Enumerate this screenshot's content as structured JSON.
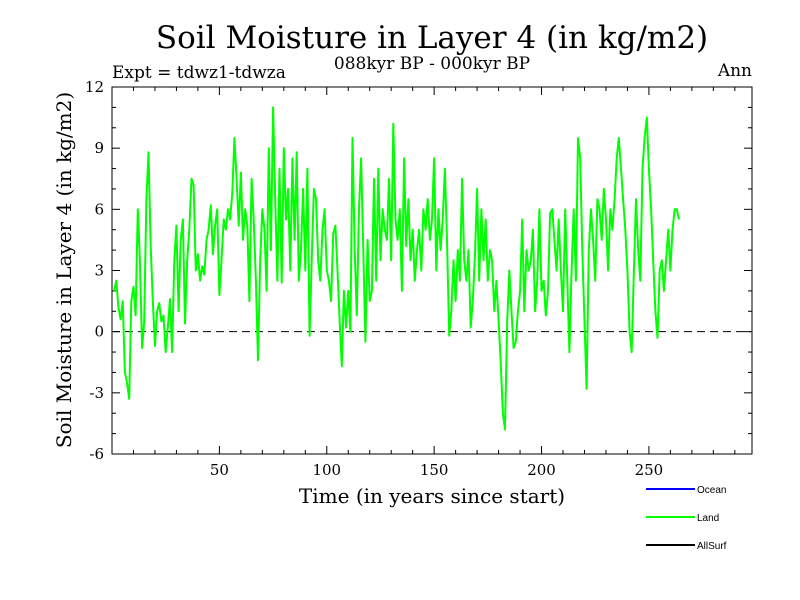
{
  "chart_data": {
    "type": "line",
    "title": "Soil Moisture in Layer 4 (in kg/m2)",
    "subtitle": "088kyr BP - 000kyr BP",
    "experiment": "Expt = tdwz1-tdwza",
    "season": "Ann",
    "xlabel": "Time (in years since start)",
    "ylabel": "Soil Moisture in Layer 4 (in kg/m2)",
    "xlim": [
      0,
      298
    ],
    "ylim": [
      -6,
      12
    ],
    "x_ticks": [
      50,
      100,
      150,
      200,
      250
    ],
    "y_ticks": [
      -6,
      -3,
      0,
      3,
      6,
      9,
      12
    ],
    "reference_line": 0,
    "legend": [
      {
        "name": "Ocean",
        "color": "#0000ff"
      },
      {
        "name": "Land",
        "color": "#00ff00"
      },
      {
        "name": "AllSurf",
        "color": "#000000"
      }
    ],
    "series": [
      {
        "name": "Land",
        "color": "#00ff00",
        "x_start": 1,
        "x_step": 1,
        "values": [
          2.0,
          2.5,
          1.2,
          0.6,
          1.5,
          -2.0,
          -2.5,
          -3.3,
          1.5,
          2.2,
          0.8,
          6.0,
          3.5,
          -0.8,
          0.5,
          6.5,
          8.8,
          4.2,
          1.5,
          -0.7,
          1.0,
          1.4,
          0.5,
          0.8,
          -1.0,
          0.2,
          1.6,
          -1.0,
          3.5,
          5.2,
          1.0,
          4.5,
          5.5,
          0.4,
          3.5,
          5.0,
          7.5,
          7.2,
          3.0,
          3.8,
          2.5,
          3.2,
          2.8,
          4.5,
          5.0,
          6.2,
          3.8,
          5.2,
          6.0,
          1.8,
          3.5,
          5.5,
          5.0,
          6.0,
          5.5,
          6.8,
          9.5,
          7.5,
          5.2,
          7.8,
          4.5,
          6.0,
          5.2,
          1.5,
          7.5,
          5.5,
          2.5,
          -1.4,
          3.5,
          6.0,
          5.0,
          2.0,
          9.0,
          4.0,
          11.0,
          6.5,
          2.5,
          8.0,
          2.4,
          9.0,
          5.5,
          7.0,
          3.0,
          8.5,
          4.5,
          8.8,
          2.5,
          4.0,
          7.0,
          3.0,
          8.0,
          -0.2,
          3.5,
          7.0,
          6.5,
          3.5,
          2.5,
          5.0,
          6.0,
          3.0,
          2.5,
          1.5,
          4.8,
          5.2,
          3.0,
          0.5,
          -1.7,
          2.0,
          0.2,
          2.0,
          0.0,
          9.5,
          4.0,
          0.8,
          6.0,
          8.5,
          4.0,
          -0.5,
          4.5,
          1.5,
          2.0,
          7.5,
          2.5,
          8.0,
          3.5,
          6.0,
          5.0,
          4.5,
          7.5,
          3.5,
          10.2,
          5.5,
          4.5,
          6.0,
          2.0,
          8.5,
          4.2,
          6.5,
          3.5,
          5.0,
          2.5,
          4.0,
          5.0,
          3.0,
          6.0,
          5.0,
          6.5,
          4.5,
          5.5,
          8.5,
          3.0,
          6.0,
          4.0,
          5.5,
          8.0,
          4.5,
          -0.2,
          1.0,
          3.5,
          1.5,
          4.0,
          2.5,
          7.5,
          3.5,
          2.5,
          4.0,
          0.2,
          1.5,
          3.8,
          7.0,
          2.5,
          6.0,
          3.5,
          5.5,
          2.5,
          4.0,
          3.5,
          1.0,
          2.5,
          0.5,
          -1.5,
          -4.0,
          -4.8,
          0.5,
          3.0,
          1.0,
          -0.8,
          -0.5,
          1.0,
          2.0,
          5.5,
          1.0,
          4.0,
          3.0,
          3.5,
          5.0,
          1.0,
          2.5,
          6.0,
          2.0,
          2.5,
          0.8,
          2.0,
          5.8,
          6.0,
          4.5,
          3.0,
          5.5,
          3.0,
          1.0,
          6.0,
          2.5,
          -1.0,
          3.0,
          6.0,
          2.5,
          9.5,
          8.5,
          4.0,
          0.5,
          -2.8,
          4.0,
          6.0,
          4.5,
          2.5,
          6.5,
          6.0,
          4.5,
          7.0,
          5.5,
          3.0,
          6.0,
          5.0,
          6.5,
          8.5,
          9.5,
          8.0,
          6.5,
          5.0,
          3.0,
          0.0,
          -1.0,
          3.0,
          6.5,
          4.0,
          2.5,
          8.0,
          9.5,
          10.5,
          8.0,
          6.0,
          3.5,
          1.0,
          -0.3,
          3.0,
          3.5,
          2.0,
          3.5,
          5.0,
          3.0,
          5.0,
          6.0,
          6.0,
          5.5
        ]
      }
    ]
  }
}
